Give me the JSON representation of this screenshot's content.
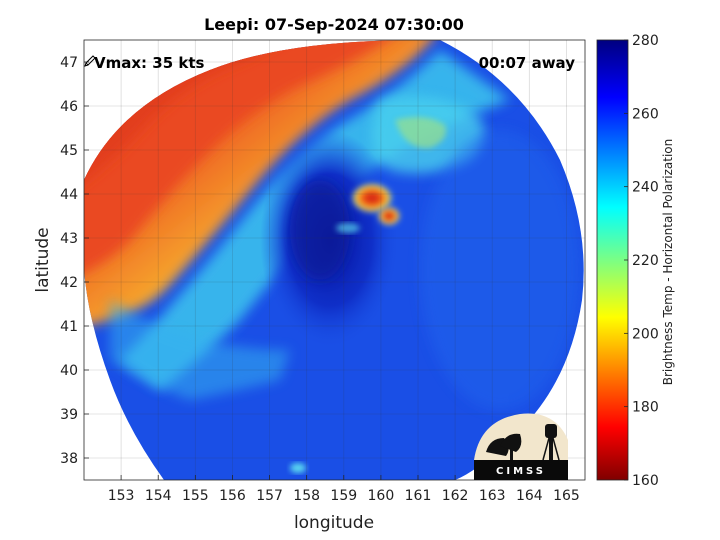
{
  "title": "Leepi: 07-Sep-2024 07:30:00",
  "xlabel": "longitude",
  "ylabel": "latitude",
  "colorbar": {
    "label": "Brightness Temp - Horizontal Polarization",
    "ticks": [
      "160",
      "180",
      "200",
      "220",
      "240",
      "260",
      "280"
    ],
    "min": 160,
    "max": 280
  },
  "overlay": {
    "vmax": "Vmax: 35 kts",
    "time_away": "00:07 away"
  },
  "logo_text": "CIMSS",
  "map": {
    "lon_range": [
      152.0,
      165.5
    ],
    "lat_range": [
      37.5,
      47.5
    ],
    "x_ticks": [
      "153",
      "154",
      "155",
      "156",
      "157",
      "158",
      "159",
      "160",
      "161",
      "162",
      "163",
      "164",
      "165"
    ],
    "y_ticks": [
      "38",
      "39",
      "40",
      "41",
      "42",
      "43",
      "44",
      "45",
      "46",
      "47"
    ],
    "grid": true,
    "colors": {
      "cold_core": "#0a1fb0",
      "blue": "#1a4fe6",
      "cyan": "#34c8f0",
      "yellow": "#f0d830",
      "orange": "#f58a2a",
      "red": "#e63a1e",
      "dark_red": "#c81a10"
    }
  }
}
